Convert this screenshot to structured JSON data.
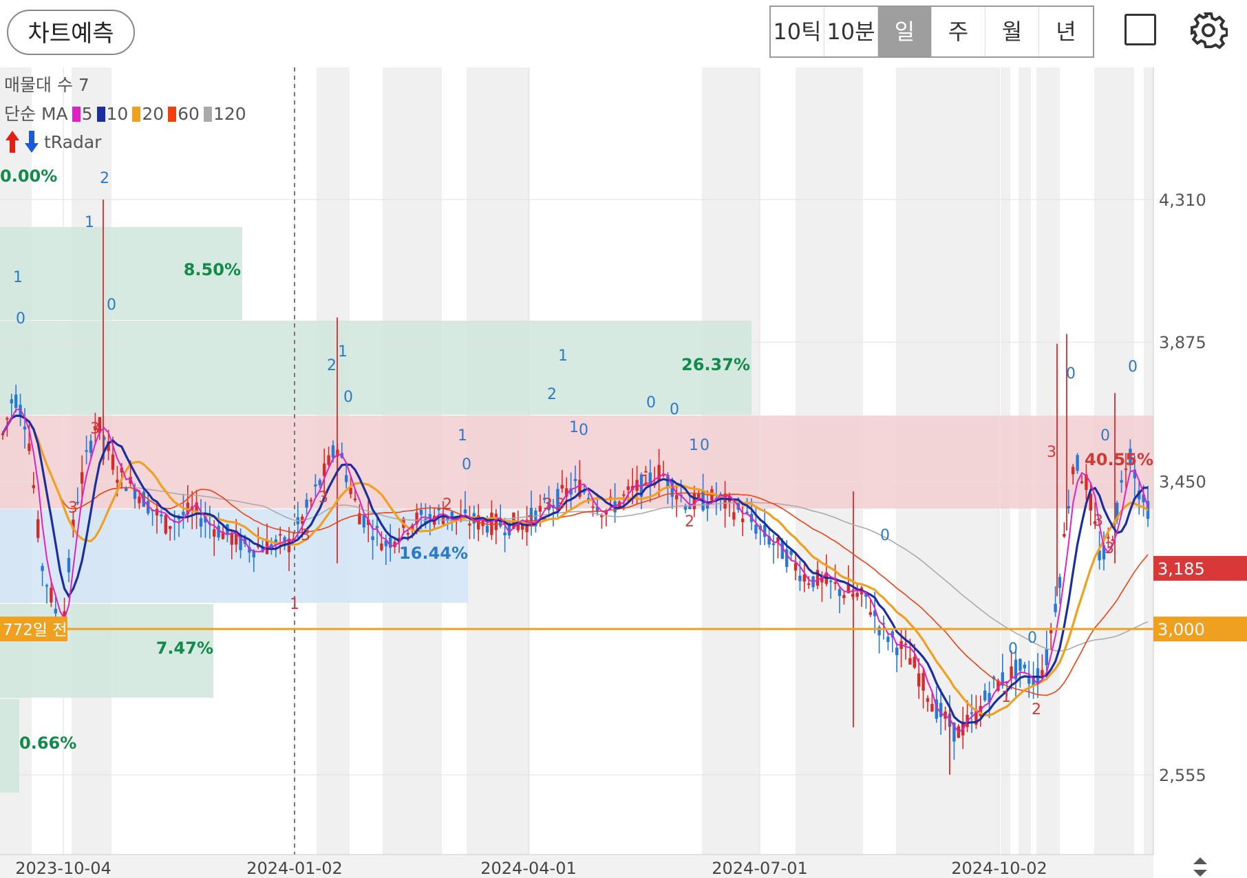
{
  "toolbar": {
    "predict_label": "차트예측",
    "periods": [
      "10틱",
      "10분",
      "일",
      "주",
      "월",
      "년"
    ],
    "active_period": "일"
  },
  "legend": {
    "volume_profile": "매물대 수 7",
    "ma_prefix": "단순 MA",
    "ma": [
      {
        "period": "5",
        "color": "#e020c0"
      },
      {
        "period": "10",
        "color": "#1a2ea0"
      },
      {
        "period": "20",
        "color": "#f0a020"
      },
      {
        "period": "60",
        "color": "#f04010"
      },
      {
        "period": "120",
        "color": "#aaaaaa"
      }
    ],
    "tradar": "tRadar"
  },
  "chart_data": {
    "type": "candlestick",
    "price_axis_labels": [
      "4,310",
      "3,875",
      "3,450",
      "2,555"
    ],
    "current_price": "3,185",
    "reference_line": {
      "price": "3,000",
      "label": "772일 전"
    },
    "date_labels": [
      "2023-10-04",
      "2024-01-02",
      "2024-04-01",
      "2024-07-01",
      "2024-10-02"
    ],
    "volume_zones": [
      {
        "pct": "0.00%",
        "color": "green"
      },
      {
        "pct": "8.50%",
        "color": "green"
      },
      {
        "pct": "26.37%",
        "color": "green"
      },
      {
        "pct": "40.55%",
        "color": "red"
      },
      {
        "pct": "16.44%",
        "color": "blue"
      },
      {
        "pct": "7.47%",
        "color": "green"
      },
      {
        "pct": "0.66%",
        "color": "green"
      }
    ],
    "colors": {
      "up": "#d62b2b",
      "down": "#2878d8",
      "zone_red": "#f2cfd2",
      "zone_green": "#cfe6dc",
      "zone_blue": "#d2e4f6",
      "reference": "#f0a020"
    }
  }
}
